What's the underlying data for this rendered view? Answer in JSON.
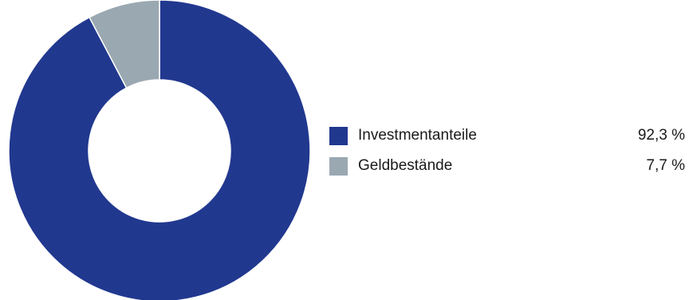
{
  "chart_data": {
    "type": "pie",
    "donut": true,
    "title": "",
    "slices": [
      {
        "label": "Investmentanteile",
        "value": 92.3,
        "value_label": "92,3 %",
        "color": "#21388f"
      },
      {
        "label": "Geldbestände",
        "value": 7.7,
        "value_label": "7,7 %",
        "color": "#9aa8b2"
      }
    ],
    "legend_position": "right"
  }
}
